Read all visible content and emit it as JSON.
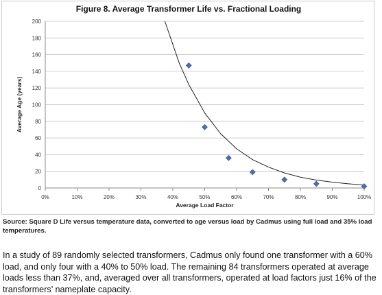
{
  "figure": {
    "source_note": "Source: Square D Life versus temperature data, converted to age versus load by Cadmus using full load and 35% load temperatures."
  },
  "paragraph": "In a study of 89 randomly selected transformers, Cadmus only found one transformer with a 60% load, and only four with a 40% to 50% load. The remaining 84 transformers operated at average loads less than 37%, and, averaged over all transformers, operated at load factors just 16% of the transformers’ nameplate capacity.",
  "colors": {
    "marker": "#4f6fa6",
    "curve": "#222222",
    "gridline": "#bfbfbf",
    "axis_text": "#333333"
  },
  "chart_data": {
    "type": "scatter",
    "title": "Figure 8. Average Transformer Life vs. Fractional Loading",
    "xlabel": "Average Load Factor",
    "ylabel": "Average Age (years)",
    "xlim": [
      0,
      1
    ],
    "ylim": [
      0,
      200
    ],
    "x_ticks": [
      "0%",
      "10%",
      "20%",
      "30%",
      "40%",
      "50%",
      "60%",
      "70%",
      "80%",
      "90%",
      "100%"
    ],
    "y_ticks": [
      "0",
      "20",
      "40",
      "60",
      "80",
      "100",
      "120",
      "140",
      "160",
      "180",
      "200"
    ],
    "grid": "horizontal",
    "series": [
      {
        "marker": "diamond",
        "points": [
          {
            "x": 0.45,
            "y": 147
          },
          {
            "x": 0.5,
            "y": 73
          },
          {
            "x": 0.575,
            "y": 36
          },
          {
            "x": 0.65,
            "y": 19
          },
          {
            "x": 0.75,
            "y": 10
          },
          {
            "x": 0.85,
            "y": 5
          },
          {
            "x": 1.0,
            "y": 2
          }
        ]
      }
    ],
    "trendline": {
      "type": "exponential",
      "points": [
        {
          "x": 0.375,
          "y": 200
        },
        {
          "x": 0.42,
          "y": 150
        },
        {
          "x": 0.45,
          "y": 124
        },
        {
          "x": 0.5,
          "y": 90
        },
        {
          "x": 0.55,
          "y": 65
        },
        {
          "x": 0.6,
          "y": 47
        },
        {
          "x": 0.65,
          "y": 34
        },
        {
          "x": 0.7,
          "y": 25
        },
        {
          "x": 0.75,
          "y": 18
        },
        {
          "x": 0.8,
          "y": 13
        },
        {
          "x": 0.85,
          "y": 9.5
        },
        {
          "x": 0.9,
          "y": 7
        },
        {
          "x": 0.95,
          "y": 5
        },
        {
          "x": 1.0,
          "y": 3.5
        }
      ]
    }
  }
}
